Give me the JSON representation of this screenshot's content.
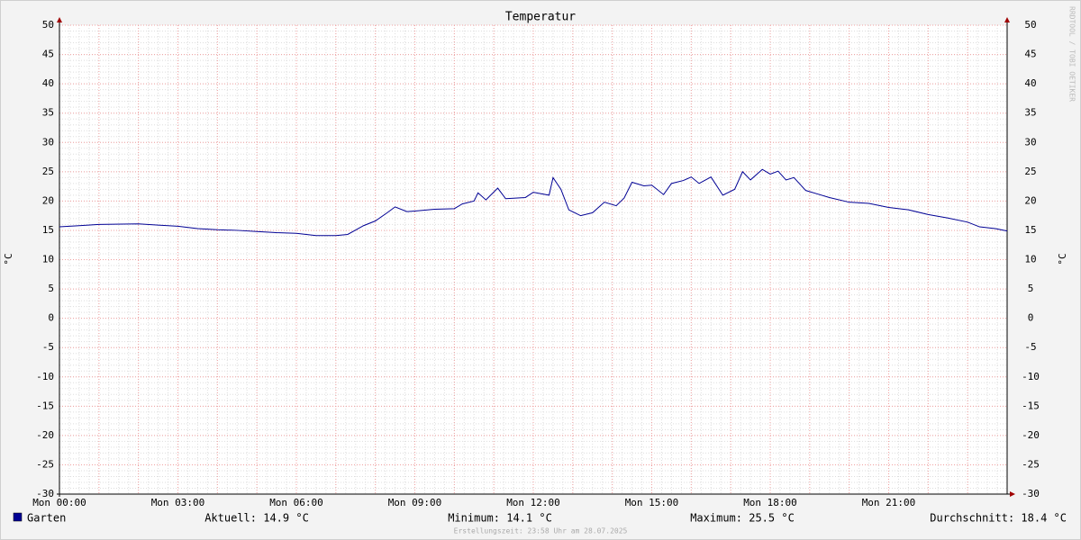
{
  "chart_data": {
    "type": "line",
    "title": "Temperatur",
    "y_label": "°C",
    "y2_label": "°C",
    "watermark": "RRDTOOL / TOBI OETIKER",
    "x": [
      0,
      0.5,
      1,
      2,
      2.5,
      3,
      3.5,
      4,
      4.5,
      5,
      5.5,
      6,
      6.5,
      7,
      7.3,
      7.7,
      8,
      8.3,
      8.5,
      8.8,
      9,
      9.5,
      10,
      10.2,
      10.5,
      10.6,
      10.8,
      11.1,
      11.3,
      11.8,
      12,
      12.4,
      12.5,
      12.7,
      12.9,
      13.2,
      13.5,
      13.8,
      14.1,
      14.3,
      14.5,
      14.8,
      15,
      15.3,
      15.5,
      15.8,
      16,
      16.2,
      16.5,
      16.8,
      17.1,
      17.3,
      17.5,
      17.8,
      18,
      18.2,
      18.4,
      18.6,
      18.9,
      19.2,
      19.5,
      20,
      20.5,
      21,
      21.5,
      22,
      22.5,
      23,
      23.3,
      23.7,
      24
    ],
    "series": [
      {
        "name": "Garten",
        "color": "#000094",
        "values": [
          15.6,
          15.8,
          16.0,
          16.1,
          15.9,
          15.7,
          15.3,
          15.1,
          15.0,
          14.8,
          14.6,
          14.5,
          14.1,
          14.1,
          14.3,
          15.8,
          16.6,
          18.0,
          19.0,
          18.2,
          18.3,
          18.6,
          18.7,
          19.5,
          20.0,
          21.4,
          20.2,
          22.2,
          20.4,
          20.6,
          21.5,
          21.0,
          24.0,
          22.0,
          18.5,
          17.5,
          18.0,
          19.8,
          19.2,
          20.5,
          23.2,
          22.6,
          22.7,
          21.1,
          23.0,
          23.5,
          24.1,
          23.0,
          24.1,
          21.0,
          22.0,
          25.0,
          23.6,
          25.4,
          24.6,
          25.1,
          23.6,
          24.0,
          21.8,
          21.2,
          20.6,
          19.8,
          19.6,
          18.9,
          18.5,
          17.7,
          17.1,
          16.4,
          15.6,
          15.3,
          14.9
        ]
      }
    ],
    "xlim": [
      0,
      24
    ],
    "xticks": [
      {
        "value": 0,
        "label": "Mon 00:00"
      },
      {
        "value": 3,
        "label": "Mon 03:00"
      },
      {
        "value": 6,
        "label": "Mon 06:00"
      },
      {
        "value": 9,
        "label": "Mon 09:00"
      },
      {
        "value": 12,
        "label": "Mon 12:00"
      },
      {
        "value": 15,
        "label": "Mon 15:00"
      },
      {
        "value": 18,
        "label": "Mon 18:00"
      },
      {
        "value": 21,
        "label": "Mon 21:00"
      }
    ],
    "ylim": [
      -30,
      50
    ],
    "yticks": [
      -30,
      -25,
      -20,
      -15,
      -10,
      -5,
      0,
      5,
      10,
      15,
      20,
      25,
      30,
      35,
      40,
      45,
      50
    ],
    "grid": true,
    "stats": [
      "Aktuell: 14.9 °C",
      "Minimum: 14.1 °C",
      "Maximum: 25.5 °C",
      "Durchschnitt: 18.4 °C"
    ],
    "footer": "Erstellungszeit: 23:58 Uhr am 28.07.2025"
  }
}
